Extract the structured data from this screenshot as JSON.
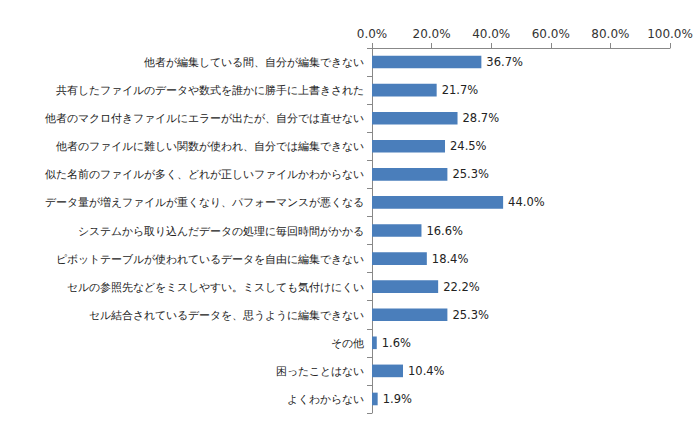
{
  "chart_data": {
    "type": "bar",
    "orientation": "horizontal",
    "categories": [
      "他者が編集している間、自分が編集できない",
      "共有したファイルのデータや数式を誰かに勝手に上書きされた",
      "他者のマクロ付きファイルにエラーが出たが、自分では直せない",
      "他者のファイルに難しい関数が使われ、自分では編集できない",
      "似た名前のファイルが多く、どれが正しいファイルかわからない",
      "データ量が増えファイルが重くなり、パフォーマンスが悪くなる",
      "システムから取り込んだデータの処理に毎回時間がかかる",
      "ピボットテーブルが使われているデータを自由に編集できない",
      "セルの参照先などをミスしやすい。ミスしても気付けにくい",
      "セル結合されているデータを、思うように編集できない",
      "その他",
      "困ったことはない",
      "よくわからない"
    ],
    "values": [
      36.7,
      21.7,
      28.7,
      24.5,
      25.3,
      44.0,
      16.6,
      18.4,
      22.2,
      25.3,
      1.6,
      10.4,
      1.9
    ],
    "value_labels": [
      "36.7%",
      "21.7%",
      "28.7%",
      "24.5%",
      "25.3%",
      "44.0%",
      "16.6%",
      "18.4%",
      "22.2%",
      "25.3%",
      "1.6%",
      "10.4%",
      "1.9%"
    ],
    "color": "#4a7ebb",
    "xlim": [
      0,
      100
    ],
    "xticks": [
      {
        "value": 0,
        "label": "0.0%"
      },
      {
        "value": 20,
        "label": "20.0%"
      },
      {
        "value": 40,
        "label": "40.0%"
      },
      {
        "value": 60,
        "label": "60.0%"
      },
      {
        "value": 80,
        "label": "80.0%"
      },
      {
        "value": 100,
        "label": "100.0%"
      }
    ],
    "grid": false,
    "data_labels": true
  }
}
